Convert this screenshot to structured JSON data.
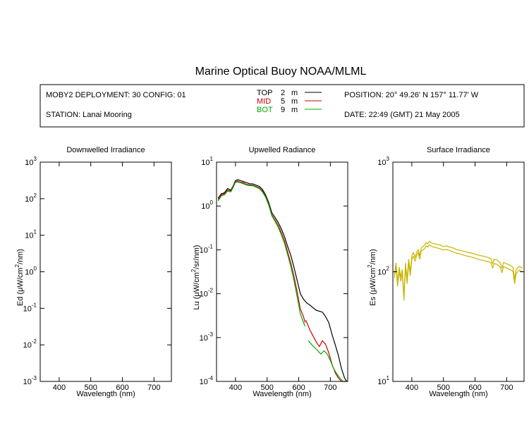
{
  "title": "Marine Optical Buoy NOAA/MLML",
  "info": {
    "deployment": "MOBY2 DEPLOYMENT: 30 CONFIG: 01",
    "station": "STATION: Lanai Mooring",
    "position": "POSITION: 20° 49.26' N   157° 11.77' W",
    "date": "DATE: 22:49 (GMT) 21 May 2005"
  },
  "legend": [
    {
      "name": "TOP",
      "depth": "2",
      "unit": "m",
      "color": "#000000"
    },
    {
      "name": "MID",
      "depth": "5",
      "unit": "m",
      "color": "#cc0000"
    },
    {
      "name": "BOT",
      "depth": "9",
      "unit": "m",
      "color": "#00aa00"
    }
  ],
  "chart_data": [
    {
      "type": "line",
      "title": "Downwelled Irradiance",
      "xlabel": "Wavelength (nm)",
      "ylabel": "Ed  (µW/cm²/nm)",
      "ylabel_parts": [
        "Ed  (",
        "μ",
        "W/cm",
        "2",
        "/nm)"
      ],
      "xlim": [
        340,
        755
      ],
      "ylim": [
        0.001,
        1000
      ],
      "yscale": "log",
      "xticks": [
        400,
        500,
        600,
        700
      ],
      "yticks": [
        {
          "base": "10",
          "exp": "-3"
        },
        {
          "base": "10",
          "exp": "-2"
        },
        {
          "base": "10",
          "exp": "-1"
        },
        {
          "base": "10",
          "exp": "0"
        },
        {
          "base": "10",
          "exp": "1"
        },
        {
          "base": "10",
          "exp": "2"
        },
        {
          "base": "10",
          "exp": "3"
        }
      ],
      "series": []
    },
    {
      "type": "line",
      "title": "Upwelled Radiance",
      "xlabel": "Wavelength (nm)",
      "ylabel": "Lu  (µW/cm²/sr/nm)",
      "ylabel_parts": [
        "Lu  (",
        "μ",
        "W/cm",
        "2",
        "/sr/nm)"
      ],
      "xlim": [
        340,
        755
      ],
      "ylim": [
        0.0001,
        10
      ],
      "yscale": "log",
      "xticks": [
        400,
        500,
        600,
        700
      ],
      "yticks": [
        {
          "base": "10",
          "exp": "-4"
        },
        {
          "base": "10",
          "exp": "-3"
        },
        {
          "base": "10",
          "exp": "-2"
        },
        {
          "base": "10",
          "exp": "-1"
        },
        {
          "base": "10",
          "exp": "0"
        },
        {
          "base": "10",
          "exp": "1"
        }
      ],
      "series": [
        {
          "color": "#000000",
          "x": [
            345,
            355,
            365,
            375,
            385,
            392,
            400,
            408,
            415,
            425,
            435,
            445,
            455,
            465,
            475,
            485,
            495,
            505,
            515,
            525,
            535,
            545,
            555,
            565,
            575,
            585,
            595,
            605,
            615,
            625,
            635,
            645,
            655,
            665,
            675,
            685,
            695,
            705,
            715,
            725,
            735,
            745,
            752
          ],
          "y": [
            1.5,
            1.9,
            2.0,
            2.5,
            2.3,
            2.8,
            3.8,
            4.0,
            3.8,
            3.6,
            3.4,
            3.2,
            3.2,
            3.0,
            2.8,
            2.4,
            1.8,
            1.2,
            0.7,
            0.55,
            0.42,
            0.3,
            0.2,
            0.12,
            0.075,
            0.04,
            0.02,
            0.01,
            0.0075,
            0.0062,
            0.0055,
            0.0048,
            0.0042,
            0.004,
            0.0038,
            0.003,
            0.0022,
            0.0012,
            0.0007,
            0.0004,
            0.0002,
            0.00012,
            0.0001
          ]
        },
        {
          "color": "#cc0000",
          "x": [
            345,
            355,
            365,
            375,
            385,
            392,
            400,
            408,
            415,
            425,
            435,
            445,
            455,
            465,
            475,
            485,
            495,
            505,
            515,
            525,
            535,
            545,
            555,
            565,
            575,
            585,
            595,
            605,
            615,
            620,
            null,
            622,
            627,
            635,
            645,
            655,
            665,
            675,
            685,
            695,
            705,
            715,
            725,
            735,
            745,
            752
          ],
          "y": [
            1.4,
            1.8,
            1.9,
            2.3,
            2.2,
            2.7,
            3.6,
            3.7,
            3.5,
            3.4,
            3.1,
            3.0,
            3.0,
            2.8,
            2.6,
            2.2,
            1.65,
            1.1,
            0.63,
            0.48,
            0.36,
            0.25,
            0.16,
            0.09,
            0.05,
            0.025,
            0.011,
            0.0045,
            0.003,
            0.0022,
            null,
            0.0025,
            0.0021,
            0.0015,
            0.0011,
            0.0008,
            0.00062,
            0.00085,
            0.0007,
            0.00045,
            0.00025,
            0.00016,
            0.00012,
            0.0001,
            0.0001,
            0.0001
          ]
        },
        {
          "color": "#00aa00",
          "x": [
            345,
            355,
            365,
            375,
            385,
            392,
            400,
            408,
            415,
            425,
            435,
            445,
            455,
            465,
            475,
            485,
            495,
            505,
            515,
            525,
            535,
            545,
            555,
            565,
            575,
            585,
            595,
            605,
            615,
            620,
            null,
            630,
            640,
            650,
            660,
            670,
            680,
            690,
            700,
            710,
            720,
            730,
            740,
            748
          ],
          "y": [
            1.3,
            1.7,
            1.8,
            2.2,
            2.1,
            2.6,
            3.5,
            3.5,
            3.4,
            3.2,
            3.0,
            2.9,
            2.9,
            2.7,
            2.5,
            2.1,
            1.6,
            1.05,
            0.6,
            0.45,
            0.33,
            0.22,
            0.14,
            0.078,
            0.042,
            0.02,
            0.0085,
            0.0035,
            0.0022,
            0.0018,
            null,
            0.00085,
            0.0007,
            0.0006,
            0.0005,
            0.00042,
            0.0005,
            0.00042,
            0.0003,
            0.0002,
            0.00015,
            0.00012,
            0.0001,
            0.0001
          ]
        }
      ]
    },
    {
      "type": "line",
      "title": "Surface Irradiance",
      "xlabel": "Wavelength (nm)",
      "ylabel": "Es  (µW/cm²/nm)",
      "ylabel_parts": [
        "Es  (",
        "μ",
        "W/cm",
        "2",
        "/nm)"
      ],
      "xlim": [
        340,
        755
      ],
      "ylim": [
        10,
        1000
      ],
      "yscale": "log",
      "xticks": [
        400,
        500,
        600,
        700
      ],
      "yticks": [
        {
          "base": "10",
          "exp": "1"
        },
        {
          "base": "10",
          "exp": "2"
        },
        {
          "base": "10",
          "exp": "3"
        }
      ],
      "series": [
        {
          "color": "#c8b400",
          "x": [
            345,
            350,
            355,
            360,
            365,
            370,
            375,
            380,
            385,
            390,
            395,
            400,
            405,
            410,
            415,
            420,
            425,
            430,
            435,
            440,
            445,
            450,
            455,
            460,
            470,
            480,
            490,
            500,
            510,
            520,
            530,
            540,
            550,
            560,
            570,
            580,
            590,
            600,
            610,
            620,
            630,
            640,
            650,
            656,
            660,
            670,
            680,
            685,
            690,
            700,
            710,
            720,
            725,
            730,
            740,
            750
          ],
          "y": [
            95,
            120,
            80,
            110,
            90,
            105,
            60,
            120,
            85,
            130,
            100,
            140,
            150,
            135,
            150,
            160,
            140,
            165,
            170,
            175,
            185,
            180,
            190,
            185,
            180,
            178,
            175,
            170,
            172,
            168,
            165,
            160,
            158,
            155,
            152,
            150,
            148,
            145,
            142,
            140,
            138,
            135,
            132,
            118,
            130,
            128,
            120,
            108,
            122,
            118,
            115,
            110,
            85,
            105,
            112,
            108
          ]
        },
        {
          "color": "#c8b400",
          "x": [
            345,
            350,
            355,
            360,
            365,
            370,
            375,
            380,
            385,
            390,
            395,
            400,
            405,
            410,
            415,
            420,
            425,
            430,
            435,
            440,
            445,
            450,
            455,
            460,
            470,
            480,
            490,
            500,
            510,
            520,
            530,
            540,
            550,
            560,
            570,
            580,
            590,
            600,
            610,
            620,
            630,
            640,
            650,
            656,
            660,
            670,
            680,
            685,
            690,
            700,
            710,
            720,
            725,
            730,
            740,
            750
          ],
          "y": [
            88,
            112,
            74,
            102,
            82,
            96,
            55,
            110,
            78,
            120,
            92,
            130,
            138,
            125,
            140,
            150,
            130,
            155,
            158,
            162,
            172,
            168,
            176,
            172,
            168,
            165,
            162,
            158,
            160,
            156,
            152,
            148,
            146,
            143,
            140,
            138,
            136,
            133,
            130,
            128,
            126,
            124,
            121,
            108,
            119,
            117,
            110,
            98,
            112,
            108,
            105,
            101,
            78,
            96,
            104,
            100
          ]
        }
      ]
    }
  ]
}
